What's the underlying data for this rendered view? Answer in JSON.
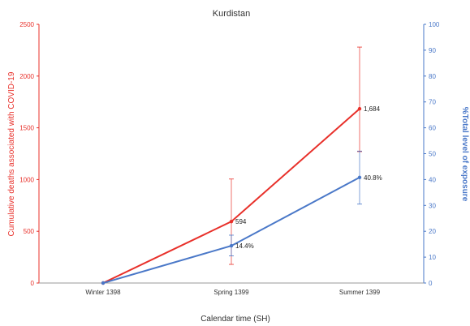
{
  "chart_data": {
    "type": "line",
    "title": "Kurdistan",
    "xlabel": "Calendar time (SH)",
    "ylabel_left": "Cumulative deaths associated with COVID-19",
    "ylabel_right": "%Total level of exposure",
    "categories": [
      "Winter 1398",
      "Spring 1399",
      "Summer 1399"
    ],
    "ylim_left": [
      0,
      2500
    ],
    "yticks_left": [
      "0",
      "500",
      "1000",
      "1500",
      "2000",
      "2500"
    ],
    "ylim_right": [
      0,
      100
    ],
    "yticks_right": [
      "0",
      "10",
      "20",
      "30",
      "40",
      "50",
      "60",
      "70",
      "80",
      "90",
      "100"
    ],
    "grid": false,
    "series": [
      {
        "axis": "left",
        "color": "#e8302a",
        "values": [
          0,
          594,
          1684
        ],
        "error_low": [
          0,
          180,
          1270
        ],
        "error_high": [
          0,
          1005,
          2280
        ],
        "labels": [
          "",
          "594",
          "1,684"
        ]
      },
      {
        "axis": "right",
        "color": "#4a78c8",
        "values": [
          0,
          14.4,
          40.8
        ],
        "error_low": [
          0,
          10.5,
          30.5
        ],
        "error_high": [
          0,
          18.5,
          51
        ],
        "labels": [
          "",
          "14.4%",
          "40.8%"
        ]
      }
    ]
  }
}
